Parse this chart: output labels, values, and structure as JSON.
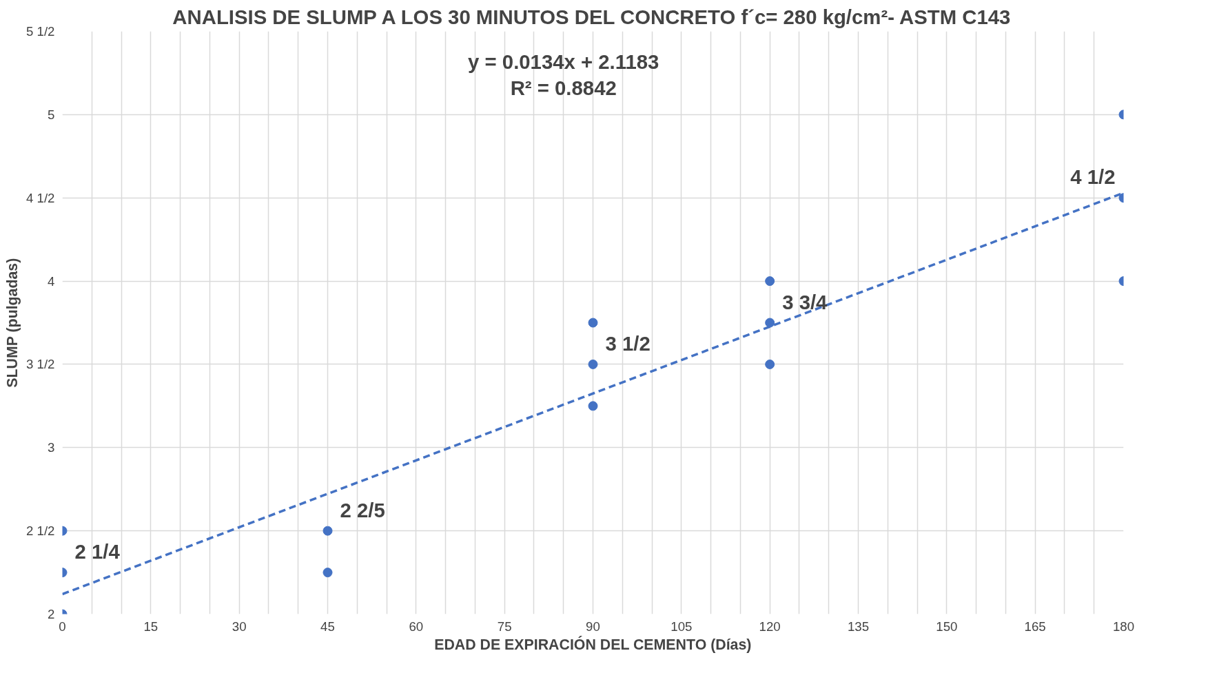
{
  "chart_data": {
    "type": "scatter",
    "title": "ANALISIS DE SLUMP A LOS 30 MINUTOS DEL CONCRETO f´c= 280 kg/cm²- ASTM C143",
    "xlabel": "EDAD DE EXPIRACIÓN DEL CEMENTO (Días)",
    "ylabel": "SLUMP (pulgadas)",
    "xlim": [
      0,
      180
    ],
    "ylim": [
      2,
      5.5
    ],
    "xticks": [
      0,
      {
        "value": 5,
        "label": null
      },
      {
        "value": 10,
        "label": null
      },
      15,
      {
        "value": 20,
        "label": null
      },
      {
        "value": 25,
        "label": null
      },
      30,
      {
        "value": 35,
        "label": null
      },
      {
        "value": 40,
        "label": null
      },
      45,
      {
        "value": 50,
        "label": null
      },
      {
        "value": 55,
        "label": null
      },
      60,
      {
        "value": 65,
        "label": null
      },
      {
        "value": 70,
        "label": null
      },
      75,
      {
        "value": 80,
        "label": null
      },
      {
        "value": 85,
        "label": null
      },
      90,
      {
        "value": 95,
        "label": null
      },
      {
        "value": 100,
        "label": null
      },
      105,
      {
        "value": 110,
        "label": null
      },
      {
        "value": 115,
        "label": null
      },
      120,
      {
        "value": 125,
        "label": null
      },
      {
        "value": 130,
        "label": null
      },
      135,
      {
        "value": 140,
        "label": null
      },
      {
        "value": 145,
        "label": null
      },
      150,
      {
        "value": 155,
        "label": null
      },
      {
        "value": 160,
        "label": null
      },
      165,
      {
        "value": 170,
        "label": null
      },
      {
        "value": 175,
        "label": null
      },
      180
    ],
    "yticks": [
      2,
      {
        "value": 2.5,
        "label": "2 1/2"
      },
      3,
      {
        "value": 3.5,
        "label": "3 1/2"
      },
      4,
      {
        "value": 4.5,
        "label": "4 1/2"
      },
      5,
      {
        "value": 5.5,
        "label": "5 1/2"
      }
    ],
    "grid": true,
    "series": [
      {
        "marker": "circle",
        "color": "#4472c4",
        "x": [
          0,
          0,
          0,
          45,
          45,
          90,
          90,
          90,
          120,
          120,
          120,
          180,
          180,
          180
        ],
        "values": [
          2,
          2.25,
          2.5,
          2.25,
          2.5,
          3.25,
          3.5,
          3.75,
          3.5,
          3.75,
          4,
          4,
          4.5,
          5
        ]
      },
      {
        "type": "line",
        "color": "#4472c4",
        "line_style": "dashed",
        "x": [
          0,
          180
        ],
        "values": [
          2.12,
          4.53
        ]
      }
    ],
    "annotations": [
      {
        "text": "2 1/4",
        "x": 0,
        "y": 2.25
      },
      {
        "text": "2 2/5",
        "x": 45,
        "y": 2.5
      },
      {
        "text": "3 1/2",
        "x": 90,
        "y": 3.5
      },
      {
        "text": "3 3/4",
        "x": 120,
        "y": 3.75
      },
      {
        "text": "4 1/2",
        "x": 180,
        "y": 4.5
      },
      "y = 0.0134x + 2.1183",
      "R² = 0.8842"
    ]
  }
}
